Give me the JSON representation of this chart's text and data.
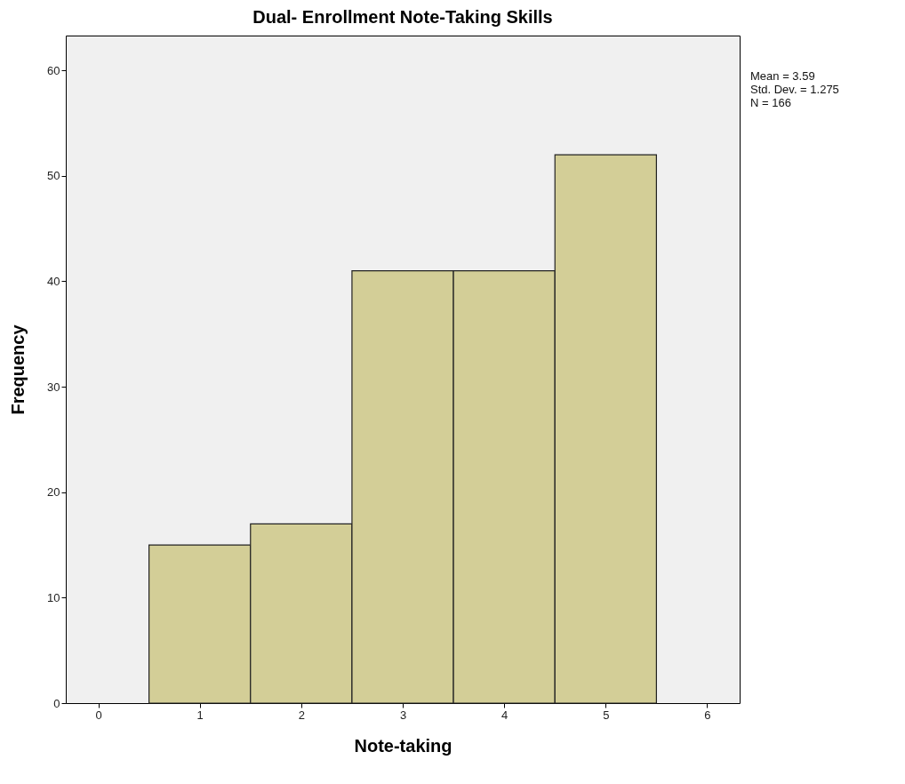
{
  "chart_data": {
    "type": "histogram",
    "title": "Dual- Enrollment Note-Taking Skills",
    "xlabel": "Note-taking",
    "ylabel": "Frequency",
    "bins": [
      0.5,
      1.5,
      2.5,
      3.5,
      4.5,
      5.5
    ],
    "values": [
      15,
      17,
      41,
      41,
      52
    ],
    "color": "#d3ce97",
    "xlim": [
      -0.32,
      6.32
    ],
    "ylim": [
      0,
      63.3
    ],
    "xticks": [
      0,
      1,
      2,
      3,
      4,
      5,
      6
    ],
    "yticks": [
      0,
      10,
      20,
      30,
      40,
      50,
      60
    ],
    "annotations": [
      "Mean = 3.59",
      "Std. Dev. = 1.275",
      "N = 166"
    ]
  }
}
